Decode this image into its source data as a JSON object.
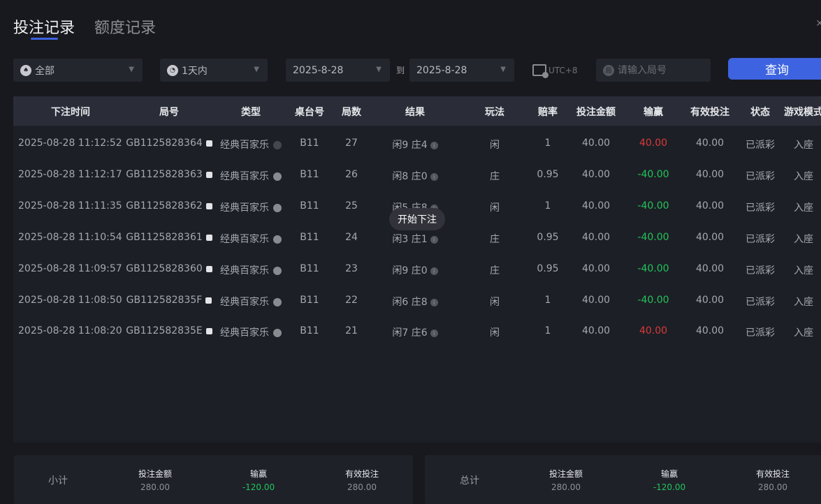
{
  "tabs": [
    {
      "label": "投注记录",
      "active": true
    },
    {
      "label": "额度记录",
      "active": false
    }
  ],
  "filters": {
    "game_type": {
      "value": "全部",
      "icon": "spade-icon"
    },
    "time_range": {
      "value": "1天内",
      "icon": "clock-icon"
    },
    "date_from": "2025-8-28",
    "to_label": "到",
    "date_to": "2025-8-28",
    "timezone": "UTC+8",
    "round_search": {
      "placeholder": "请输入局号",
      "icon_text": "局"
    },
    "query_label": "查询"
  },
  "table": {
    "headers": [
      "下注时间",
      "局号",
      "类型",
      "桌台号",
      "局数",
      "结果",
      "玩法",
      "赔率",
      "投注金额",
      "输赢",
      "有效投注",
      "状态",
      "游戏模式"
    ],
    "rows": [
      [
        "2025-08-28 11:12:52",
        "GB1125828364",
        "经典百家乐",
        "B11",
        "27",
        "闲9 庄4",
        "闲",
        "1",
        "40.00",
        "40.00",
        "40.00",
        "已派彩",
        "入座"
      ],
      [
        "2025-08-28 11:12:17",
        "GB1125828363",
        "经典百家乐",
        "B11",
        "26",
        "闲8 庄0",
        "庄",
        "0.95",
        "40.00",
        "-40.00",
        "40.00",
        "已派彩",
        "入座"
      ],
      [
        "2025-08-28 11:11:35",
        "GB1125828362",
        "经典百家乐",
        "B11",
        "25",
        "闲5 庄8",
        "闲",
        "1",
        "40.00",
        "-40.00",
        "40.00",
        "已派彩",
        "入座"
      ],
      [
        "2025-08-28 11:10:54",
        "GB1125828361",
        "经典百家乐",
        "B11",
        "24",
        "闲3 庄1",
        "庄",
        "0.95",
        "40.00",
        "-40.00",
        "40.00",
        "已派彩",
        "入座"
      ],
      [
        "2025-08-28 11:09:57",
        "GB1125828360",
        "经典百家乐",
        "B11",
        "23",
        "闲9 庄0",
        "庄",
        "0.95",
        "40.00",
        "-40.00",
        "40.00",
        "已派彩",
        "入座"
      ],
      [
        "2025-08-28 11:08:50",
        "GB112582835F",
        "经典百家乐",
        "B11",
        "22",
        "闲6 庄8",
        "闲",
        "1",
        "40.00",
        "-40.00",
        "40.00",
        "已派彩",
        "入座"
      ],
      [
        "2025-08-28 11:08:20",
        "GB112582835E",
        "经典百家乐",
        "B11",
        "21",
        "闲7 庄6",
        "闲",
        "1",
        "40.00",
        "40.00",
        "40.00",
        "已派彩",
        "入座"
      ]
    ]
  },
  "tooltip": "开始下注",
  "colors": {
    "accent": "#3d63e0",
    "win": "#d93a3a",
    "loss": "#21c45a"
  },
  "summary": {
    "subtotal": {
      "label": "小计",
      "bet_label": "投注金额",
      "bet": "280.00",
      "winloss_label": "输赢",
      "winloss": "-120.00",
      "valid_label": "有效投注",
      "valid": "280.00"
    },
    "total": {
      "label": "总计",
      "bet_label": "投注金额",
      "bet": "280.00",
      "winloss_label": "输赢",
      "winloss": "-120.00",
      "valid_label": "有效投注",
      "valid": "280.00"
    }
  }
}
